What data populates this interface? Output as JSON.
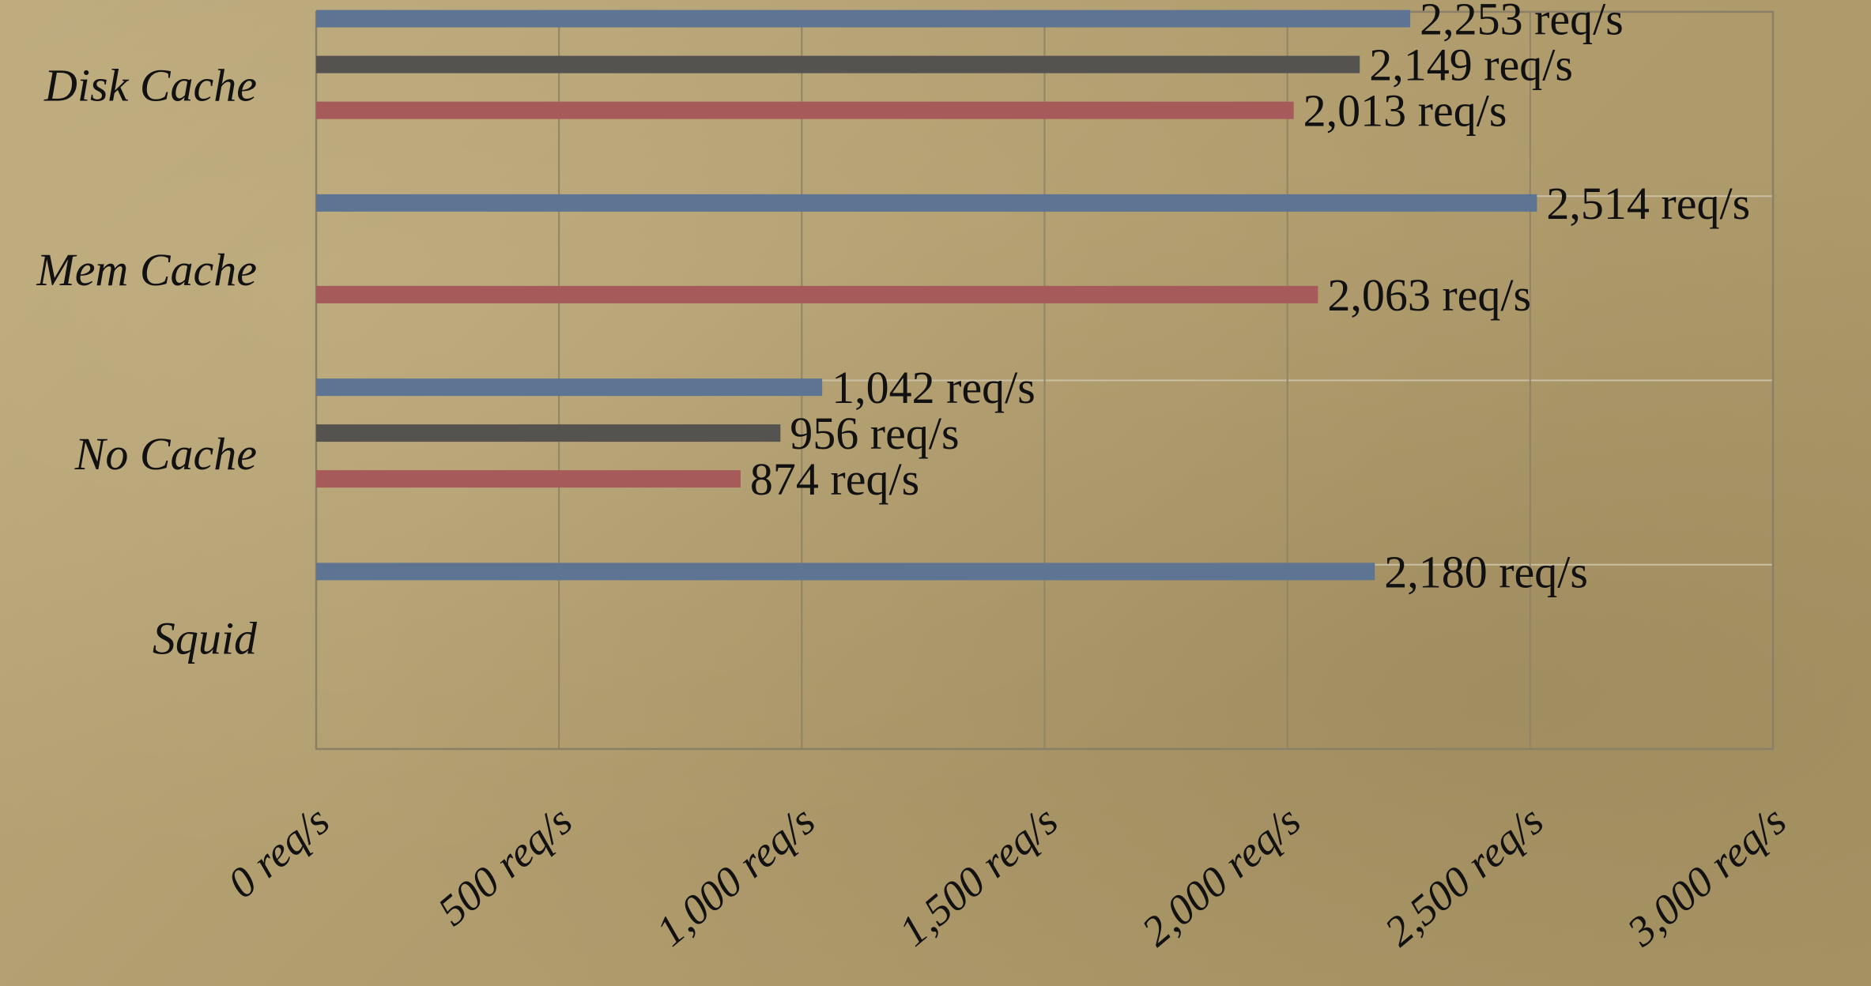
{
  "chart_data": {
    "type": "bar",
    "orientation": "horizontal",
    "title": "",
    "xlabel": "",
    "ylabel": "",
    "xlim": [
      0,
      3000
    ],
    "x_ticks": [
      0,
      500,
      1000,
      1500,
      2000,
      2500,
      3000
    ],
    "x_tick_labels": [
      "0 req/s",
      "500 req/s",
      "1,000 req/s",
      "1,500 req/s",
      "2,000 req/s",
      "2,500 req/s",
      "3,000 req/s"
    ],
    "grid": "on",
    "legend": "none",
    "categories": [
      "Disk Cache",
      "Mem Cache",
      "No Cache",
      "Squid"
    ],
    "series": [
      {
        "color": "#5d7592",
        "values": [
          2253,
          2514,
          1042,
          2180
        ],
        "labels": [
          "2,253 req/s",
          "2,514 req/s",
          "1,042 req/s",
          "2,180 req/s"
        ]
      },
      {
        "color": "#555350",
        "values": [
          2149,
          null,
          956,
          null
        ],
        "labels": [
          "2,149 req/s",
          null,
          "956 req/s",
          null
        ]
      },
      {
        "color": "#a65a5a",
        "values": [
          2013,
          2063,
          874,
          null
        ],
        "labels": [
          "2,013 req/s",
          "2,063 req/s",
          "874 req/s",
          null
        ]
      }
    ]
  }
}
